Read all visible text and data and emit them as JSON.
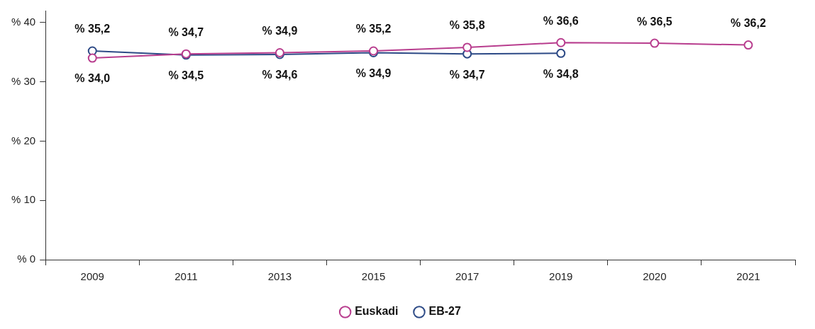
{
  "chart_data": {
    "type": "line",
    "categories": [
      "2009",
      "2011",
      "2013",
      "2015",
      "2017",
      "2019",
      "2020",
      "2021"
    ],
    "ylim": [
      0,
      42
    ],
    "yticks": [
      {
        "value": 0,
        "label": "% 0"
      },
      {
        "value": 10,
        "label": "% 10"
      },
      {
        "value": 20,
        "label": "% 20"
      },
      {
        "value": 30,
        "label": "% 30"
      },
      {
        "value": 40,
        "label": "% 40"
      }
    ],
    "grid": false,
    "legend": "bottom",
    "marker": "circle",
    "line_style": "solid",
    "series": [
      {
        "name": "Euskadi",
        "color": "#b83d8e",
        "values": [
          34.0,
          34.7,
          34.9,
          35.2,
          35.8,
          36.6,
          36.5,
          36.2
        ],
        "value_labels": [
          "% 34,0",
          "% 34,7",
          "% 34,9",
          "% 35,2",
          "% 35,8",
          "% 36,6",
          "% 36,5",
          "% 36,2"
        ]
      },
      {
        "name": "EB-27",
        "color": "#2d4a86",
        "values": [
          35.2,
          34.5,
          34.6,
          34.9,
          34.7,
          34.8,
          null,
          null
        ],
        "value_labels": [
          "% 35,2",
          "% 34,5",
          "% 34,6",
          "% 34,9",
          "% 34,7",
          "% 34,8",
          null,
          null
        ]
      }
    ]
  }
}
